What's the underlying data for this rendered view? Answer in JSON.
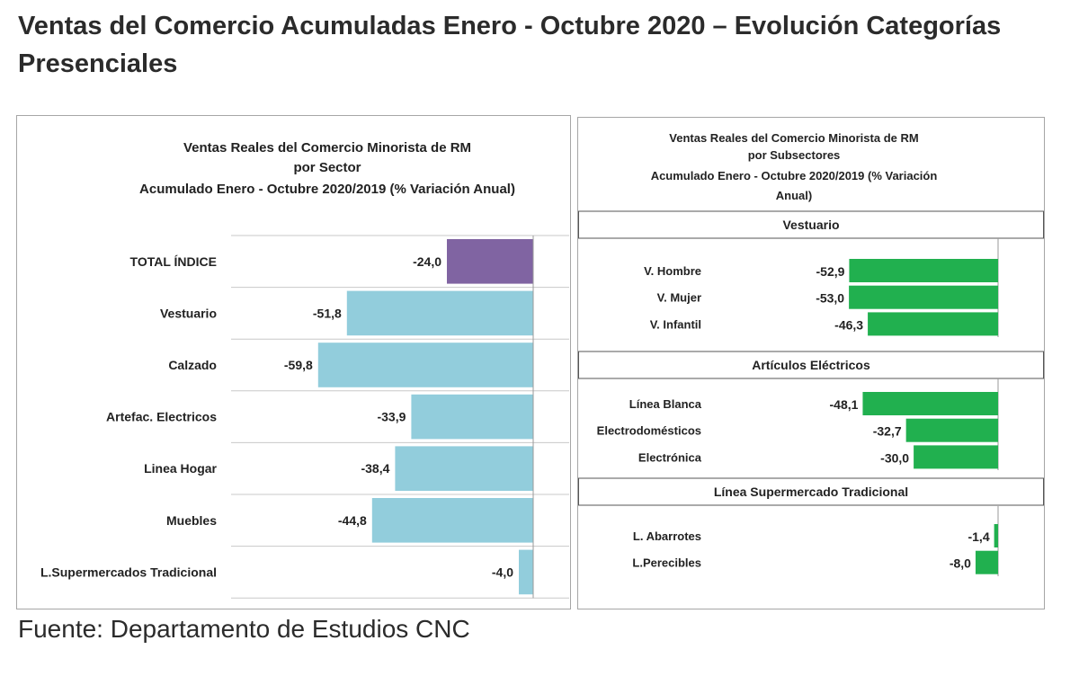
{
  "page": {
    "title": "Ventas del Comercio Acumuladas Enero - Octubre 2020 – Evolución Categorías Presenciales",
    "source": "Fuente: Departamento de Estudios CNC"
  },
  "colors": {
    "total_bar": "#8064a2",
    "sector_bar": "#92cddc",
    "subsector_bar": "#21b04f"
  },
  "chart_data": [
    {
      "type": "bar",
      "orientation": "horizontal",
      "title_lines": [
        "Ventas Reales del Comercio Minorista de RM",
        "por Sector",
        "Acumulado Enero - Octubre 2020/2019 (% Variación Anual)"
      ],
      "categories": [
        "TOTAL ÍNDICE",
        "Vestuario",
        "Calzado",
        "Artefac. Electricos",
        "Linea Hogar",
        "Muebles",
        "L.Supermercados Tradicional"
      ],
      "values": [
        -24.0,
        -51.8,
        -59.8,
        -33.9,
        -38.4,
        -44.8,
        -4.0
      ],
      "labels": [
        "-24,0",
        "-51,8",
        "-59,8",
        "-33,9",
        "-38,4",
        "-44,8",
        "-4,0"
      ],
      "xlim": [
        -60,
        5
      ],
      "grid": true,
      "legend": "none"
    },
    {
      "type": "bar",
      "orientation": "horizontal",
      "title_lines": [
        "Ventas Reales del Comercio Minorista de RM",
        "por Subsectores",
        "Acumulado Enero - Octubre 2020/2019 (% Variación",
        "Anual)"
      ],
      "groups": [
        {
          "name": "Vestuario",
          "categories": [
            "V. Hombre",
            "V. Mujer",
            "V. Infantil"
          ],
          "values": [
            -52.9,
            -53.0,
            -46.3
          ],
          "labels": [
            "-52,9",
            "-53,0",
            "-46,3"
          ]
        },
        {
          "name": "Artículos Eléctricos",
          "categories": [
            "Línea Blanca",
            "Electrodomésticos",
            "Electrónica"
          ],
          "values": [
            -48.1,
            -32.7,
            -30.0
          ],
          "labels": [
            "-48,1",
            "-32,7",
            "-30,0"
          ]
        },
        {
          "name": "Línea  Supermercado Tradicional",
          "categories": [
            "L. Abarrotes",
            "L.Perecibles"
          ],
          "values": [
            -1.4,
            -8.0
          ],
          "labels": [
            "-1,4",
            "-8,0"
          ]
        }
      ],
      "xlim": [
        -53,
        0
      ],
      "grid": false,
      "legend": "none"
    }
  ]
}
